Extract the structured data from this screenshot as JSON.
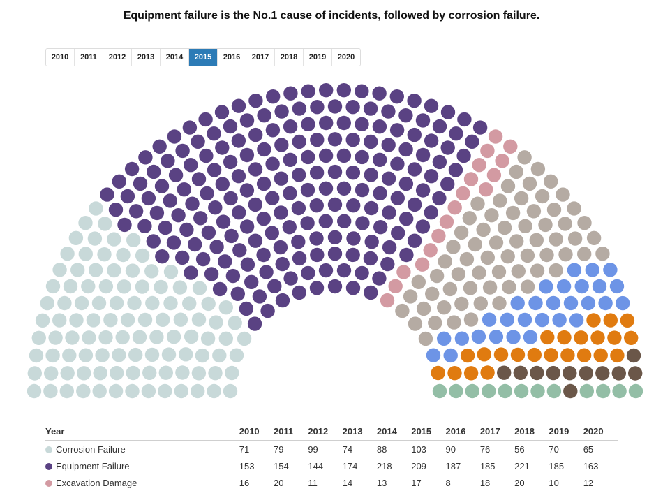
{
  "title": "Equipment failure is the No.1 cause of incidents, followed by corrosion failure.",
  "years": [
    "2010",
    "2011",
    "2012",
    "2013",
    "2014",
    "2015",
    "2016",
    "2017",
    "2018",
    "2019",
    "2020"
  ],
  "selected_year": "2015",
  "table": {
    "year_header": "Year"
  },
  "chart_data": {
    "type": "hemicycle",
    "title": "Equipment failure is the No.1 cause of incidents, followed by corrosion failure.",
    "x": [
      "2010",
      "2011",
      "2012",
      "2013",
      "2014",
      "2015",
      "2016",
      "2017",
      "2018",
      "2019",
      "2020"
    ],
    "series": [
      {
        "name": "Corrosion Failure",
        "color": "#c8d9d9",
        "values": [
          71,
          79,
          99,
          74,
          88,
          103,
          90,
          76,
          56,
          70,
          65
        ]
      },
      {
        "name": "Equipment Failure",
        "color": "#5a4283",
        "values": [
          153,
          154,
          144,
          174,
          218,
          209,
          187,
          185,
          221,
          185,
          163
        ]
      },
      {
        "name": "Excavation Damage",
        "color": "#d39aa2",
        "values": [
          16,
          20,
          11,
          14,
          13,
          17,
          8,
          18,
          20,
          10,
          12
        ]
      },
      {
        "name": "",
        "color": "#b5aba3",
        "values": [
          null,
          null,
          null,
          null,
          null,
          null,
          null,
          null,
          null,
          null,
          null
        ]
      },
      {
        "name": "",
        "color": "#6d94e6",
        "values": [
          null,
          null,
          null,
          null,
          null,
          null,
          null,
          null,
          null,
          null,
          null
        ]
      },
      {
        "name": "",
        "color": "#e07b10",
        "values": [
          null,
          null,
          null,
          null,
          null,
          null,
          null,
          null,
          null,
          null,
          null
        ]
      },
      {
        "name": "",
        "color": "#6b5749",
        "values": [
          null,
          null,
          null,
          null,
          null,
          null,
          null,
          null,
          null,
          null,
          null
        ]
      },
      {
        "name": "",
        "color": "#93bea6",
        "values": [
          null,
          null,
          null,
          null,
          null,
          null,
          null,
          null,
          null,
          null,
          null
        ]
      }
    ],
    "dot_counts_shown": [
      103,
      209,
      17,
      67,
      29,
      23,
      11,
      12
    ]
  }
}
